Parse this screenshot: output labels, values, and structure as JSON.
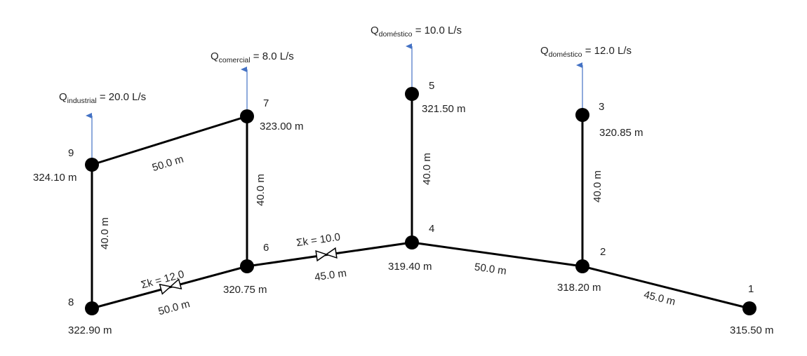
{
  "nodes": [
    {
      "id": "1",
      "label": "1",
      "elevation": "315.50 m"
    },
    {
      "id": "2",
      "label": "2",
      "elevation": "318.20 m"
    },
    {
      "id": "3",
      "label": "3",
      "elevation": "320.85 m"
    },
    {
      "id": "4",
      "label": "4",
      "elevation": "319.40 m"
    },
    {
      "id": "5",
      "label": "5",
      "elevation": "321.50 m"
    },
    {
      "id": "6",
      "label": "6",
      "elevation": "320.75 m"
    },
    {
      "id": "7",
      "label": "7",
      "elevation": "323.00 m"
    },
    {
      "id": "8",
      "label": "8",
      "elevation": "322.90 m"
    },
    {
      "id": "9",
      "label": "9",
      "elevation": "324.10 m"
    }
  ],
  "pipes": [
    {
      "from": "1",
      "to": "2",
      "length": "45.0 m"
    },
    {
      "from": "2",
      "to": "4",
      "length": "50.0 m"
    },
    {
      "from": "2",
      "to": "3",
      "length": "40.0 m"
    },
    {
      "from": "4",
      "to": "5",
      "length": "40.0 m"
    },
    {
      "from": "4",
      "to": "6",
      "length": "45.0 m"
    },
    {
      "from": "6",
      "to": "7",
      "length": "40.0 m"
    },
    {
      "from": "6",
      "to": "8",
      "length": "50.0 m"
    },
    {
      "from": "7",
      "to": "9",
      "length": "50.0 m"
    },
    {
      "from": "8",
      "to": "9",
      "length": "40.0 m"
    }
  ],
  "valves": [
    {
      "pipe": "4-6",
      "label": "Σk = 10.0"
    },
    {
      "pipe": "6-8",
      "label": "Σk = 12.0"
    }
  ],
  "demands": [
    {
      "node": "9",
      "q": "Q",
      "sub": "industrial",
      "value": " = 20.0 L/s"
    },
    {
      "node": "7",
      "q": "Q",
      "sub": "comercial",
      "value": " = 8.0 L/s"
    },
    {
      "node": "5",
      "q": "Q",
      "sub": "doméstico",
      "value": " = 10.0 L/s"
    },
    {
      "node": "3",
      "q": "Q",
      "sub": "doméstico",
      "value": " = 12.0 L/s"
    }
  ],
  "colors": {
    "pipe": "#000000",
    "node": "#000000",
    "demand_arrow": "#4472c4"
  }
}
